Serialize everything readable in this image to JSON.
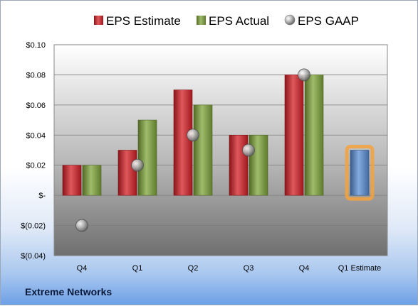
{
  "chart_data": {
    "type": "bar",
    "categories": [
      "Q4",
      "Q1",
      "Q2",
      "Q3",
      "Q4",
      "Q1 Estimate"
    ],
    "series": [
      {
        "name": "EPS Estimate",
        "values": [
          0.02,
          0.03,
          0.07,
          0.04,
          0.08,
          null
        ],
        "color": "#d42026"
      },
      {
        "name": "EPS Actual",
        "values": [
          0.02,
          0.05,
          0.06,
          0.04,
          0.08,
          0.03
        ],
        "color": "#7fa53a",
        "highlight_color": "#5b8fd6"
      },
      {
        "name": "EPS GAAP",
        "values": [
          -0.02,
          0.02,
          0.04,
          0.03,
          0.08,
          null
        ],
        "color": "#9a9a9a",
        "marker": "circle"
      }
    ],
    "ylim": [
      -0.04,
      0.1
    ],
    "yticks": [
      0.1,
      0.08,
      0.06,
      0.04,
      0.02,
      0,
      -0.02,
      -0.04
    ],
    "ytick_labels": [
      "$0.10",
      "$0.08",
      "$0.06",
      "$0.04",
      "$0.02",
      "$-",
      "$(0.02)",
      "$(0.04)"
    ],
    "grid": true,
    "legend_placement": "top-center"
  },
  "footer": {
    "company": "Extreme Networks"
  },
  "colors": {
    "plot_bg_top": "#ffffff",
    "plot_bg_mid": "#b9b9b9",
    "plot_bg_bottom": "#6f6f6f",
    "estimate_glow": "#f5a23c"
  }
}
